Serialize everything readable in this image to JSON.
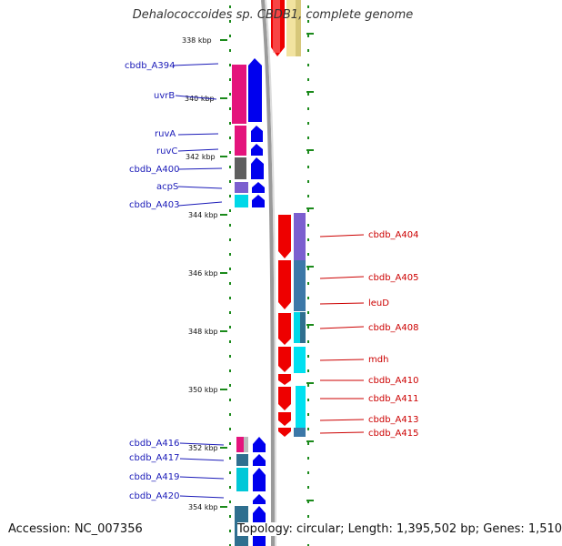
{
  "title": "Dehalococcoides sp. CBDB1, complete genome",
  "colors": {
    "forward": "#0000ee",
    "reverse": "#ee0000",
    "label_left": "#1a1ab8",
    "label_right": "#cc0000",
    "tick": "#1b8a1b",
    "backbone": "#888888"
  },
  "kbp_labels": [
    "338 kbp",
    "340 kbp",
    "342 kbp",
    "344 kbp",
    "346 kbp",
    "348 kbp",
    "350 kbp",
    "352 kbp",
    "354 kbp"
  ],
  "left_genes": [
    "cbdb_A394",
    "uvrB",
    "ruvA",
    "ruvC",
    "cbdb_A400",
    "acpS",
    "cbdb_A403",
    "cbdb_A416",
    "cbdb_A417",
    "cbdb_A419",
    "cbdb_A420"
  ],
  "right_genes": [
    "cbdb_A404",
    "cbdb_A405",
    "leuD",
    "cbdb_A408",
    "mdh",
    "cbdb_A410",
    "cbdb_A411",
    "cbdb_A413",
    "cbdb_A415"
  ],
  "footer": {
    "accession": "Accession: NC_007356",
    "topology": "Topology: circular; Length: 1,395,502 bp; Genes: 1,510"
  }
}
